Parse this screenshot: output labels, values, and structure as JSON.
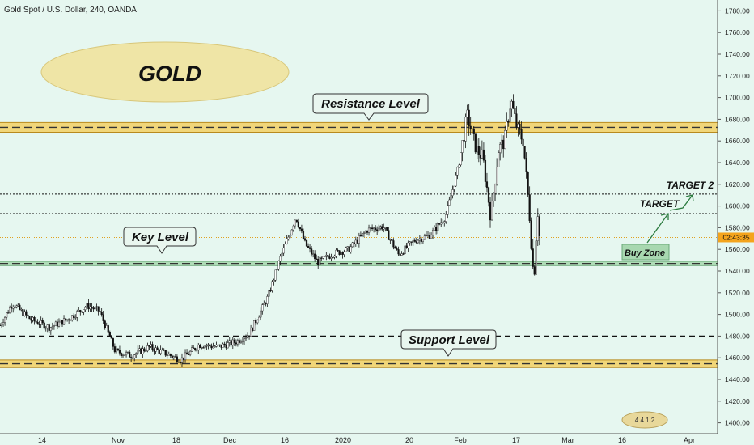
{
  "header": {
    "symbol_text": "Gold Spot / U.S. Dollar, 240, OANDA"
  },
  "colors": {
    "background": "#e6f7f0",
    "candle_up": "#ffffff",
    "candle_down": "#111111",
    "zone_gold": "#f2d16b",
    "zone_gold_border": "#b88a1e",
    "zone_green": "#a8d8b0",
    "zone_green_border": "#6aa878",
    "ellipse_fill": "#efe5a6",
    "price_tag": "#f4a41c"
  },
  "chart_data": {
    "type": "candlestick",
    "title": "GOLD",
    "ylim": [
      1390,
      1790
    ],
    "y_ticks": [
      1400,
      1420,
      1440,
      1460,
      1480,
      1500,
      1520,
      1540,
      1560,
      1580,
      1600,
      1620,
      1640,
      1660,
      1680,
      1700,
      1720,
      1740,
      1760,
      1780
    ],
    "x_tick_labels": [
      "14",
      "Nov",
      "18",
      "Dec",
      "16",
      "2020",
      "20",
      "Feb",
      "17",
      "Mar",
      "16",
      "Apr"
    ],
    "current_price_label": "02:43:35",
    "price_path": [
      {
        "t": 0,
        "p": 1490
      },
      {
        "t": 0.02,
        "p": 1510
      },
      {
        "t": 0.05,
        "p": 1495
      },
      {
        "t": 0.08,
        "p": 1488
      },
      {
        "t": 0.11,
        "p": 1496
      },
      {
        "t": 0.14,
        "p": 1508
      },
      {
        "t": 0.16,
        "p": 1503
      },
      {
        "t": 0.185,
        "p": 1466
      },
      {
        "t": 0.21,
        "p": 1462
      },
      {
        "t": 0.24,
        "p": 1470
      },
      {
        "t": 0.27,
        "p": 1463
      },
      {
        "t": 0.29,
        "p": 1458
      },
      {
        "t": 0.32,
        "p": 1472
      },
      {
        "t": 0.35,
        "p": 1470
      },
      {
        "t": 0.38,
        "p": 1475
      },
      {
        "t": 0.4,
        "p": 1482
      },
      {
        "t": 0.43,
        "p": 1516
      },
      {
        "t": 0.45,
        "p": 1552
      },
      {
        "t": 0.465,
        "p": 1574
      },
      {
        "t": 0.475,
        "p": 1590
      },
      {
        "t": 0.49,
        "p": 1565
      },
      {
        "t": 0.51,
        "p": 1548
      },
      {
        "t": 0.535,
        "p": 1556
      },
      {
        "t": 0.56,
        "p": 1560
      },
      {
        "t": 0.59,
        "p": 1578
      },
      {
        "t": 0.615,
        "p": 1581
      },
      {
        "t": 0.64,
        "p": 1555
      },
      {
        "t": 0.665,
        "p": 1568
      },
      {
        "t": 0.69,
        "p": 1573
      },
      {
        "t": 0.715,
        "p": 1590
      },
      {
        "t": 0.735,
        "p": 1634
      },
      {
        "t": 0.75,
        "p": 1683
      },
      {
        "t": 0.765,
        "p": 1652
      },
      {
        "t": 0.775,
        "p": 1645
      },
      {
        "t": 0.788,
        "p": 1590
      },
      {
        "t": 0.8,
        "p": 1652
      },
      {
        "t": 0.81,
        "p": 1660
      },
      {
        "t": 0.82,
        "p": 1698
      },
      {
        "t": 0.83,
        "p": 1672
      },
      {
        "t": 0.84,
        "p": 1660
      },
      {
        "t": 0.85,
        "p": 1593
      },
      {
        "t": 0.857,
        "p": 1530
      },
      {
        "t": 0.863,
        "p": 1598
      },
      {
        "t": 0.866,
        "p": 1572
      }
    ],
    "horizontal_levels": [
      {
        "name": "resistance-zone",
        "type": "zone",
        "low": 1668,
        "high": 1677,
        "style": "gold"
      },
      {
        "name": "key-zone",
        "type": "zone",
        "low": 1545,
        "high": 1549,
        "style": "green"
      },
      {
        "name": "support-zone",
        "type": "zone",
        "low": 1451,
        "high": 1458,
        "style": "gold"
      },
      {
        "name": "target2-line",
        "type": "line",
        "value": 1611,
        "style": "dotted"
      },
      {
        "name": "target-line",
        "type": "line",
        "value": 1593,
        "style": "dotted"
      },
      {
        "name": "support-dashed-line",
        "type": "line",
        "value": 1480,
        "style": "dashed"
      },
      {
        "name": "current-price-line",
        "type": "line",
        "value": 1571,
        "style": "dotted-orange"
      }
    ],
    "annotations": {
      "title_text": "GOLD",
      "resistance_label": "Resistance Level",
      "key_label": "Key Level",
      "support_label": "Support Level",
      "buy_zone_label": "Buy Zone",
      "target_label": "TARGET",
      "target2_label": "TARGET 2",
      "watermark_text": "4 4 1 2"
    }
  }
}
